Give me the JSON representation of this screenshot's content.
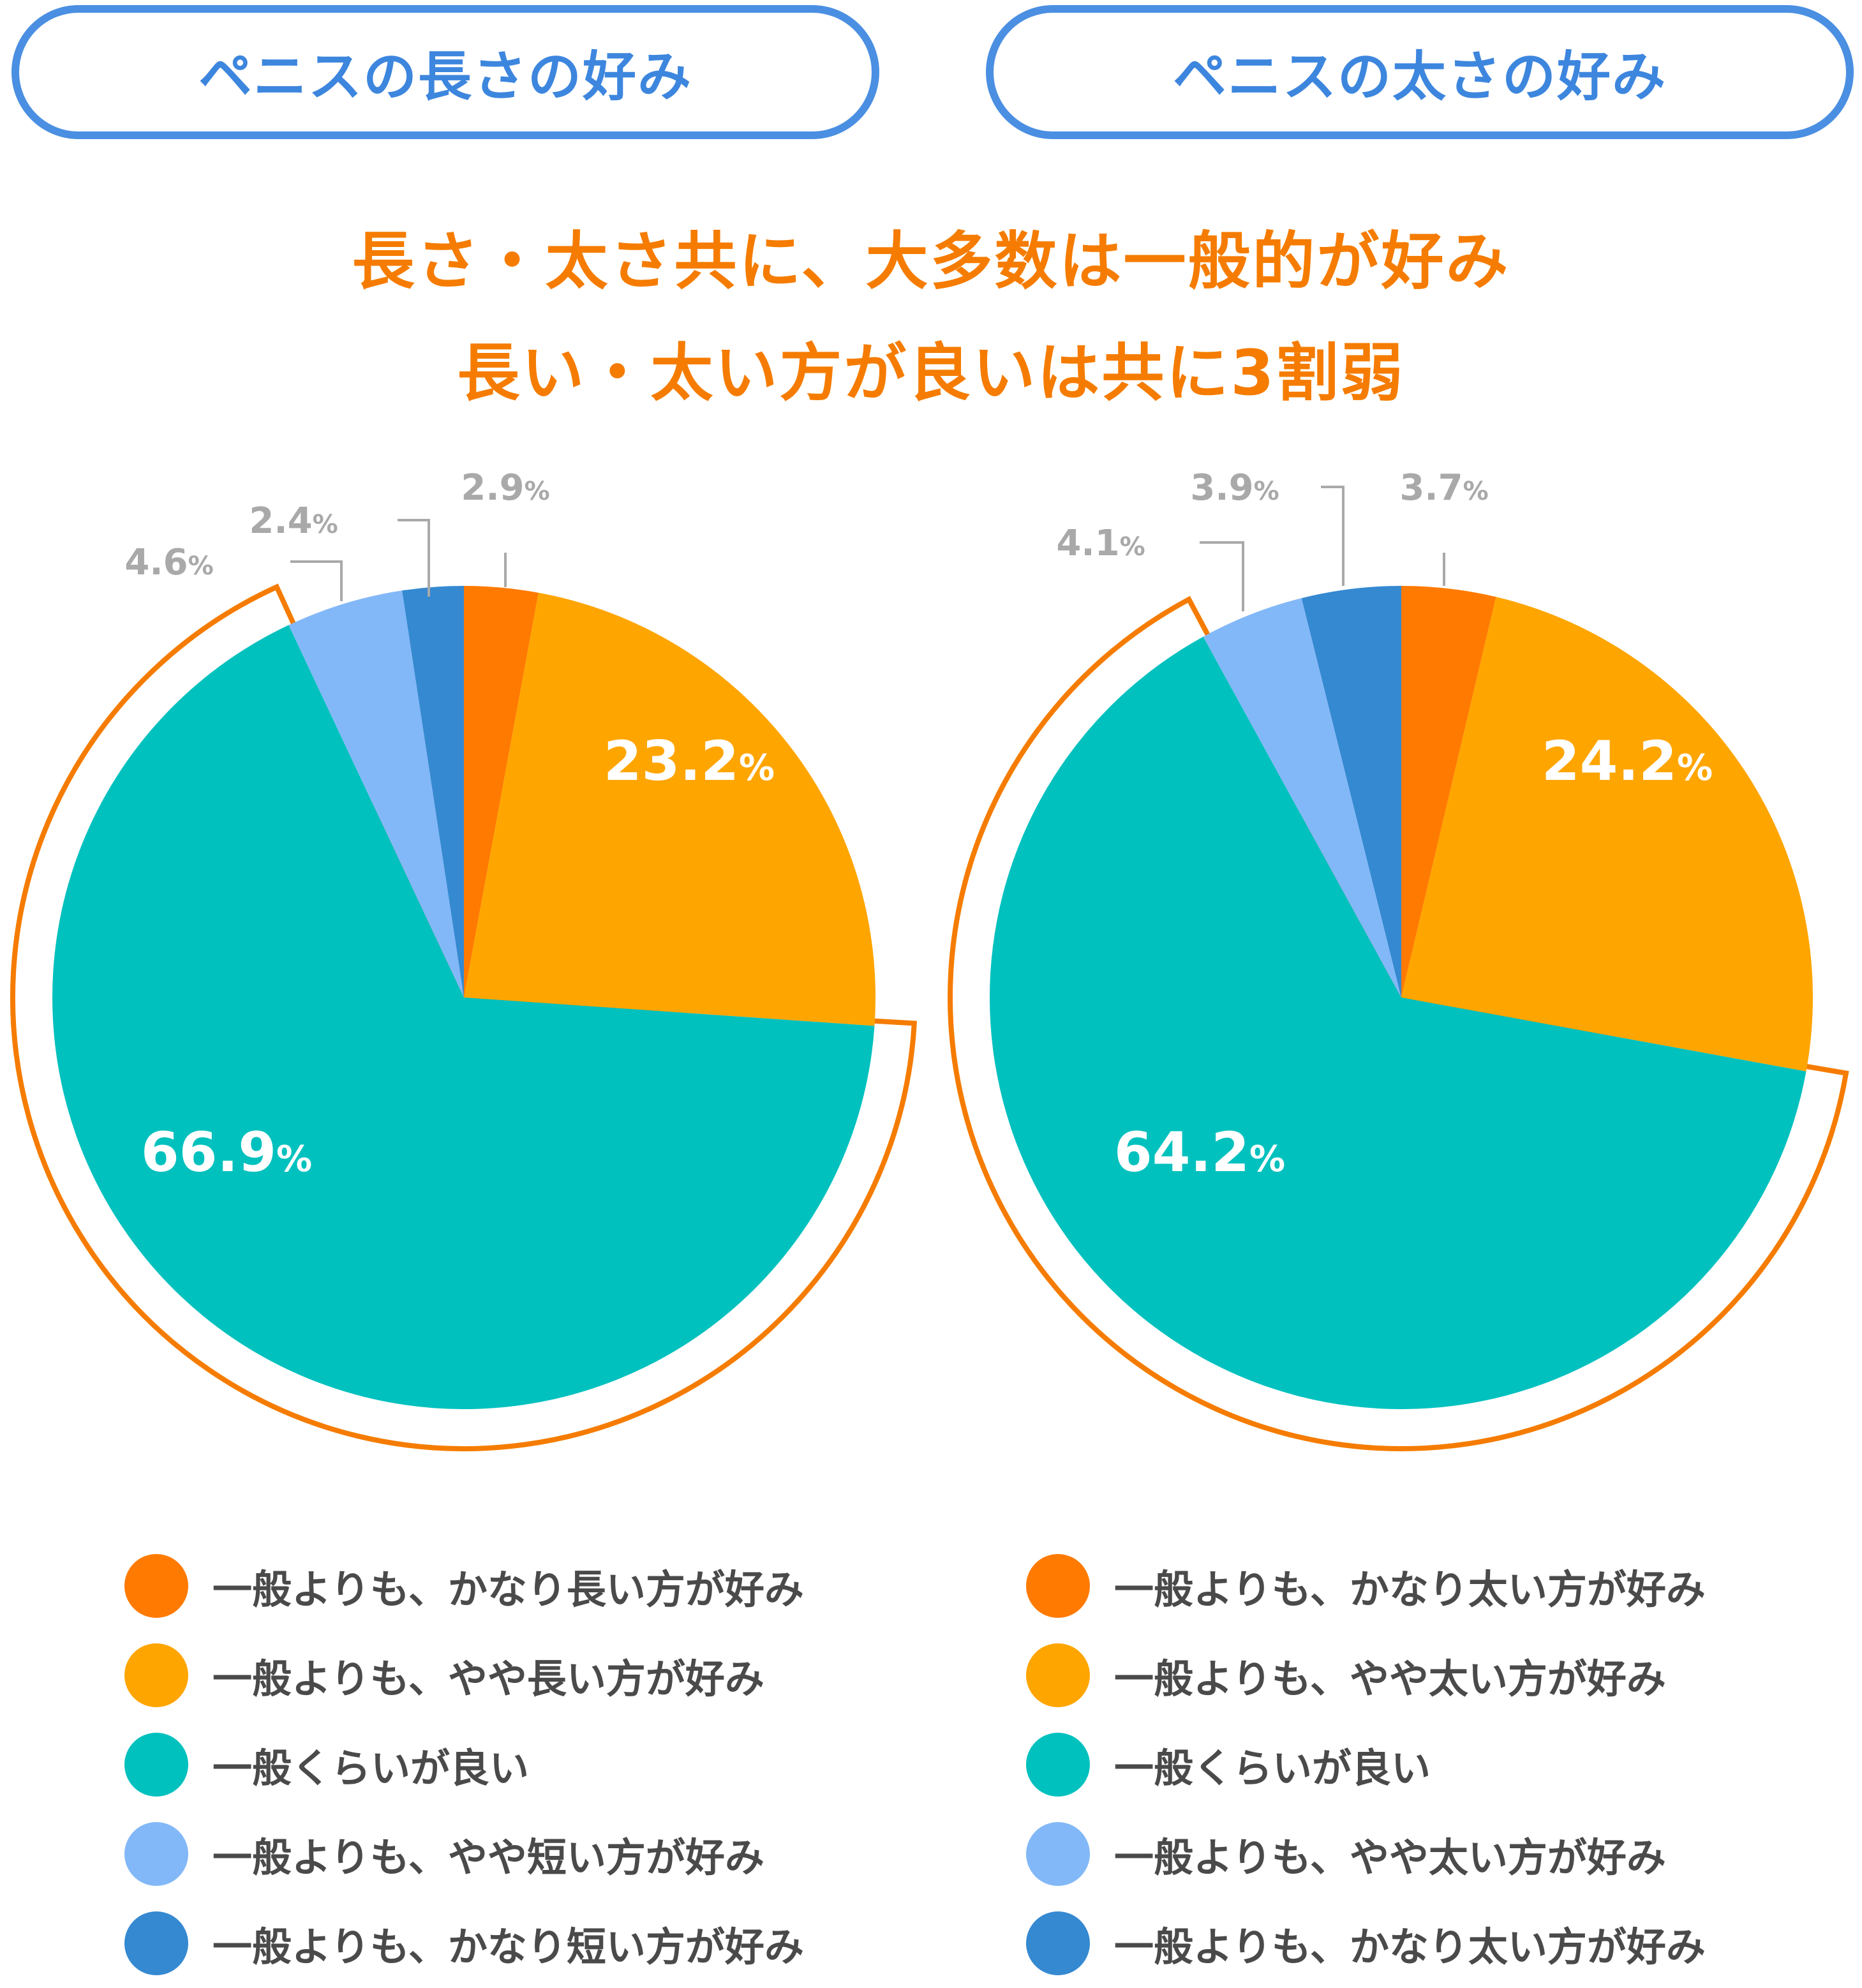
{
  "headers": [
    "ペニスの長さの好み",
    "ペニスの太さの好み"
  ],
  "headline": [
    "長さ・太さ共に、大多数は一般的が好み",
    "長い・太い方が良いは共に3割弱"
  ],
  "colors": {
    "pill_border": "#4a8fe2",
    "pill_text": "#3d86de",
    "headline": "#f57c00",
    "highlight": "#f57c00",
    "label_inside": "#ffffff",
    "label_outside": "#a9a9a9",
    "legend_text": "#4a4a4a"
  },
  "chart_data": [
    {
      "type": "pie",
      "title": "ペニスの長さの好み",
      "slices": [
        {
          "label": "一般よりも、かなり長い方が好み",
          "value": 2.9,
          "color": "#ff7a00"
        },
        {
          "label": "一般よりも、やや長い方が好み",
          "value": 23.2,
          "color": "#ffa500"
        },
        {
          "label": "一般くらいが良い",
          "value": 66.9,
          "color": "#00c1be"
        },
        {
          "label": "一般よりも、やや短い方が好み",
          "value": 4.6,
          "color": "#82b8f7"
        },
        {
          "label": "一般よりも、かなり短い方が好み",
          "value": 2.4,
          "color": "#3589d1"
        }
      ],
      "highlighted": [
        "一般くらいが良い"
      ]
    },
    {
      "type": "pie",
      "title": "ペニスの太さの好み",
      "slices": [
        {
          "label": "一般よりも、かなり太い方が好み",
          "value": 3.7,
          "color": "#ff7a00"
        },
        {
          "label": "一般よりも、やや太い方が好み",
          "value": 24.2,
          "color": "#ffa500"
        },
        {
          "label": "一般くらいが良い",
          "value": 64.2,
          "color": "#00c1be"
        },
        {
          "label": "一般よりも、やや太い方が好み",
          "value": 4.1,
          "color": "#82b8f7"
        },
        {
          "label": "一般よりも、かなり太い方が好み",
          "value": 3.9,
          "color": "#3589d1"
        }
      ],
      "highlighted": [
        "一般くらいが良い"
      ]
    }
  ],
  "legends": [
    [
      "一般よりも、かなり長い方が好み",
      "一般よりも、やや長い方が好み",
      "一般くらいが良い",
      "一般よりも、やや短い方が好み",
      "一般よりも、かなり短い方が好み"
    ],
    [
      "一般よりも、かなり太い方が好み",
      "一般よりも、やや太い方が好み",
      "一般くらいが良い",
      "一般よりも、やや太い方が好み",
      "一般よりも、かなり太い方が好み"
    ]
  ]
}
